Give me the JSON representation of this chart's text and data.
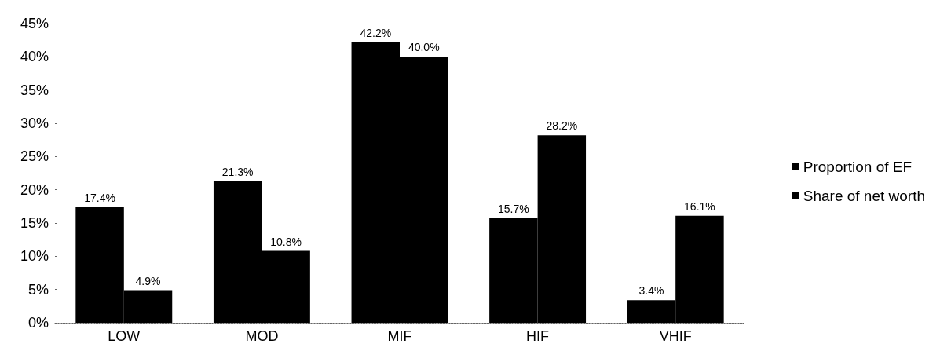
{
  "chart_data": {
    "type": "bar",
    "categories": [
      "LOW",
      "MOD",
      "MIF",
      "HIF",
      "VHIF"
    ],
    "series": [
      {
        "name": "Proportion of EF",
        "color": "#000000",
        "values": [
          17.4,
          21.3,
          42.2,
          15.7,
          3.4
        ],
        "value_labels": [
          "17.4%",
          "21.3%",
          "42.2%",
          "15.7%",
          "3.4%"
        ]
      },
      {
        "name": "Share of net worth",
        "color": "#000000",
        "values": [
          4.9,
          10.8,
          40.0,
          28.2,
          16.1
        ],
        "value_labels": [
          "4.9%",
          "10.8%",
          "40.0%",
          "28.2%",
          "16.1%"
        ]
      }
    ],
    "ylim": [
      0,
      45
    ],
    "yticks": [
      {
        "value": 0,
        "label": "0%"
      },
      {
        "value": 5,
        "label": "5%"
      },
      {
        "value": 10,
        "label": "10%"
      },
      {
        "value": 15,
        "label": "15%"
      },
      {
        "value": 20,
        "label": "20%"
      },
      {
        "value": 25,
        "label": "25%"
      },
      {
        "value": 30,
        "label": "30%"
      },
      {
        "value": 35,
        "label": "35%"
      },
      {
        "value": 40,
        "label": "40%"
      },
      {
        "value": 45,
        "label": "45%"
      }
    ],
    "grid": false,
    "legend": "right"
  }
}
